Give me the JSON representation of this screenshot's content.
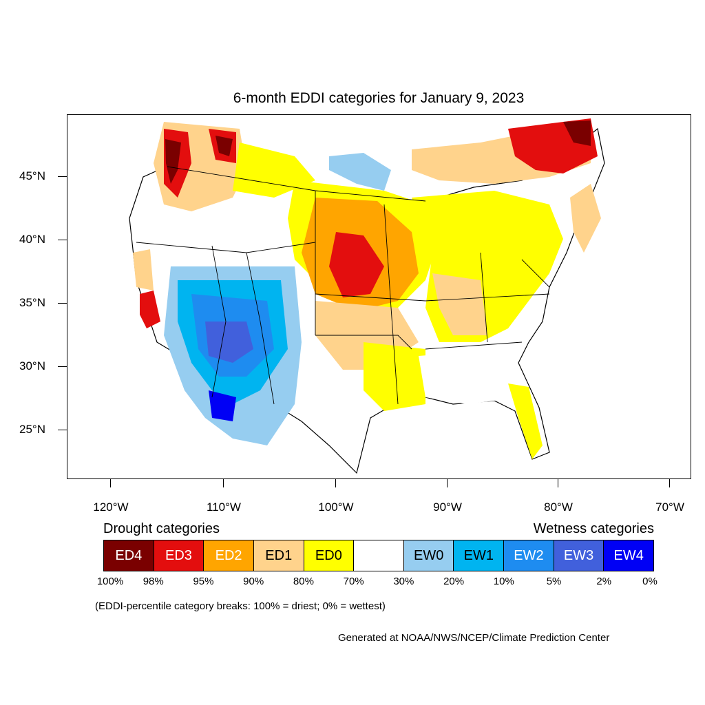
{
  "title": "6-month EDDI categories for January 9, 2023",
  "axes": {
    "latitude_ticks": [
      "45°N",
      "40°N",
      "35°N",
      "30°N",
      "25°N"
    ],
    "longitude_ticks": [
      "120°W",
      "110°W",
      "100°W",
      "90°W",
      "80°W",
      "70°W"
    ]
  },
  "legend": {
    "drought_heading": "Drought categories",
    "wetness_heading": "Wetness categories",
    "categories": [
      {
        "label": "ED4",
        "color": "#7a0000",
        "text_color": "#ffffff"
      },
      {
        "label": "ED3",
        "color": "#e30e0e",
        "text_color": "#ffffff"
      },
      {
        "label": "ED2",
        "color": "#ffa500",
        "text_color": "#ffffff"
      },
      {
        "label": "ED1",
        "color": "#ffd38c",
        "text_color": "#000000"
      },
      {
        "label": "ED0",
        "color": "#ffff00",
        "text_color": "#000000"
      },
      {
        "label": "",
        "color": "#ffffff",
        "text_color": "#000000"
      },
      {
        "label": "EW0",
        "color": "#96cdf0",
        "text_color": "#000000"
      },
      {
        "label": "EW1",
        "color": "#00b4f0",
        "text_color": "#000000"
      },
      {
        "label": "EW2",
        "color": "#1e8cf0",
        "text_color": "#ffffff"
      },
      {
        "label": "EW3",
        "color": "#4160dc",
        "text_color": "#ffffff"
      },
      {
        "label": "EW4",
        "color": "#0000f5",
        "text_color": "#ffffff"
      }
    ],
    "percentiles": [
      "100%",
      "98%",
      "95%",
      "90%",
      "80%",
      "70%",
      "30%",
      "20%",
      "10%",
      "5%",
      "2%",
      "0%"
    ]
  },
  "note": "(EDDI-percentile category breaks: 100% = driest; 0% = wettest)",
  "credit": "Generated at NOAA/NWS/NCEP/Climate Prediction Center"
}
